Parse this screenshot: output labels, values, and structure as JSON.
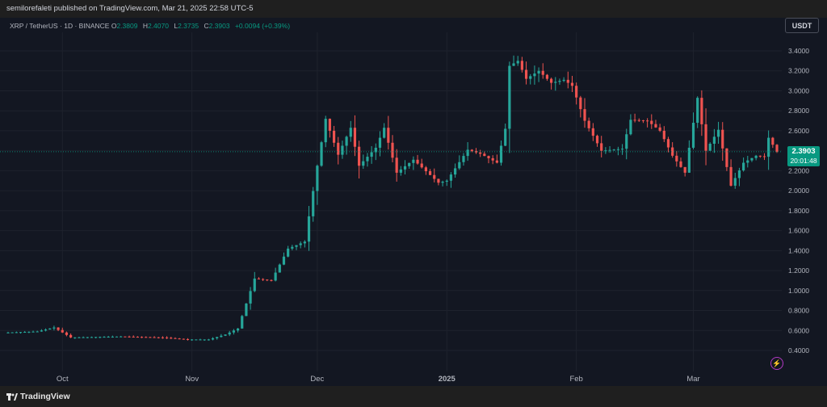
{
  "header": {
    "publish_text": "semilorefaleti published on TradingView.com, Mar 21, 2025 22:58 UTC-5"
  },
  "symbol_bar": {
    "title": "XRP / TetherUS · 1D · BINANCE",
    "open_label": "O",
    "open_value": "2.3809",
    "high_label": "H",
    "high_value": "2.4070",
    "low_label": "L",
    "low_value": "2.3735",
    "close_label": "C",
    "close_value": "2.3903",
    "change": "+0.0094 (+0.39%)"
  },
  "currency_button": "USDT",
  "last_price": {
    "price": "2.3903",
    "countdown": "20:01:48"
  },
  "footer": {
    "brand": "TradingView"
  },
  "colors": {
    "up": "#26a69a",
    "down": "#ef5350",
    "tag": "#089981",
    "background": "#131722"
  },
  "icons": {
    "alert": "bolt-icon",
    "brand": "tradingview-logo-icon"
  },
  "chart_data": {
    "type": "candlestick",
    "symbol": "XRP / TetherUS",
    "interval": "1D",
    "exchange": "BINANCE",
    "currency": "USDT",
    "y_ticks": [
      "3.4000",
      "3.2000",
      "3.0000",
      "2.8000",
      "2.6000",
      "2.4000",
      "2.2000",
      "2.0000",
      "1.8000",
      "1.6000",
      "1.4000",
      "1.2000",
      "1.0000",
      "0.8000",
      "0.6000",
      "0.4000"
    ],
    "ylim": [
      0.3,
      3.6
    ],
    "x_ticks": [
      {
        "label": "Oct",
        "date": "2024-10-01"
      },
      {
        "label": "Nov",
        "date": "2024-11-01"
      },
      {
        "label": "Dec",
        "date": "2024-12-01"
      },
      {
        "label": "2025",
        "date": "2025-01-01"
      },
      {
        "label": "Feb",
        "date": "2025-02-01"
      },
      {
        "label": "Mar",
        "date": "2025-03-01"
      }
    ],
    "x_range": [
      "2024-09-18",
      "2025-03-21"
    ],
    "anchors": [
      [
        "2024-09-18",
        0.58
      ],
      [
        "2024-09-25",
        0.59
      ],
      [
        "2024-09-29",
        0.63
      ],
      [
        "2024-10-03",
        0.53
      ],
      [
        "2024-10-15",
        0.54
      ],
      [
        "2024-10-25",
        0.53
      ],
      [
        "2024-10-31",
        0.51
      ],
      [
        "2024-11-05",
        0.51
      ],
      [
        "2024-11-09",
        0.56
      ],
      [
        "2024-11-12",
        0.62
      ],
      [
        "2024-11-16",
        1.12
      ],
      [
        "2024-11-20",
        1.1
      ],
      [
        "2024-11-24",
        1.42
      ],
      [
        "2024-11-28",
        1.49
      ],
      [
        "2024-12-01",
        2.25
      ],
      [
        "2024-12-03",
        2.72
      ],
      [
        "2024-12-06",
        2.36
      ],
      [
        "2024-12-09",
        2.63
      ],
      [
        "2024-12-11",
        2.25
      ],
      [
        "2024-12-15",
        2.43
      ],
      [
        "2024-12-17",
        2.63
      ],
      [
        "2024-12-20",
        2.18
      ],
      [
        "2024-12-24",
        2.31
      ],
      [
        "2024-12-30",
        2.08
      ],
      [
        "2025-01-01",
        2.1
      ],
      [
        "2025-01-06",
        2.41
      ],
      [
        "2025-01-09",
        2.37
      ],
      [
        "2025-01-13",
        2.28
      ],
      [
        "2025-01-15",
        2.62
      ],
      [
        "2025-01-16",
        3.25
      ],
      [
        "2025-01-18",
        3.3
      ],
      [
        "2025-01-20",
        3.12
      ],
      [
        "2025-01-23",
        3.2
      ],
      [
        "2025-01-26",
        3.08
      ],
      [
        "2025-01-29",
        3.11
      ],
      [
        "2025-01-31",
        3.05
      ],
      [
        "2025-02-03",
        2.7
      ],
      [
        "2025-02-07",
        2.4
      ],
      [
        "2025-02-12",
        2.42
      ],
      [
        "2025-02-14",
        2.71
      ],
      [
        "2025-02-18",
        2.7
      ],
      [
        "2025-02-21",
        2.6
      ],
      [
        "2025-02-24",
        2.35
      ],
      [
        "2025-02-27",
        2.18
      ],
      [
        "2025-03-02",
        2.93
      ],
      [
        "2025-03-04",
        2.4
      ],
      [
        "2025-03-07",
        2.61
      ],
      [
        "2025-03-10",
        2.05
      ],
      [
        "2025-03-13",
        2.28
      ],
      [
        "2025-03-16",
        2.35
      ],
      [
        "2025-03-18",
        2.34
      ],
      [
        "2025-03-19",
        2.53
      ],
      [
        "2025-03-21",
        2.39
      ]
    ],
    "last_close": 2.3903
  }
}
